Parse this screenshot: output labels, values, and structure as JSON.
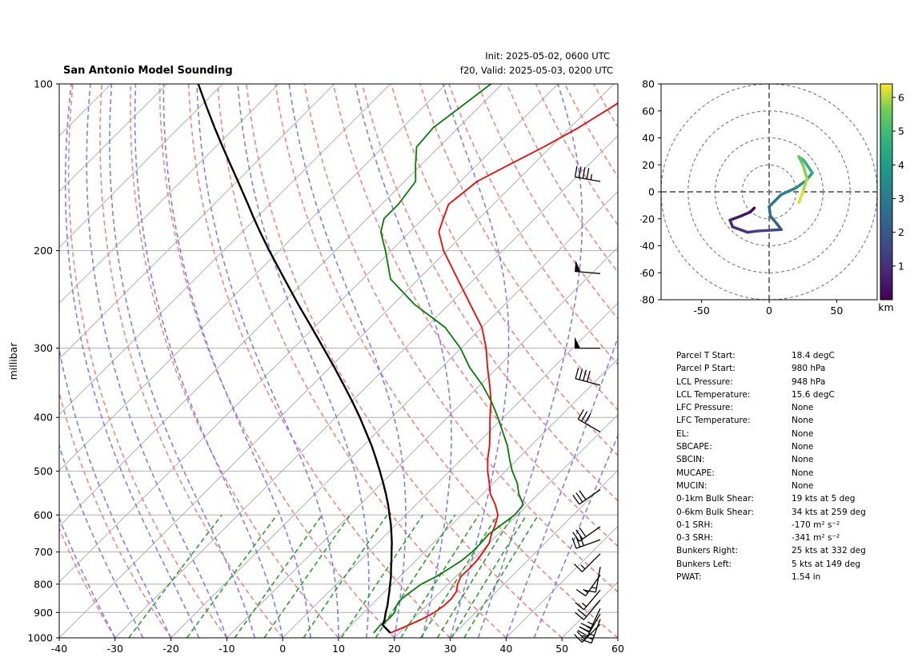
{
  "title_left": "San Antonio Model Sounding",
  "init_line": "Init: 2025-05-02, 0600 UTC",
  "valid_line": "f20, Valid: 2025-05-03, 0200 UTC",
  "colors": {
    "temperature": "#ff0000",
    "dewpoint": "#008000",
    "parcel": "#000000",
    "dry_adiabat": "#f08080",
    "moist_adiabat": "#6f6fff",
    "mixing_ratio": "#2ca02c",
    "isotherm": "#b0b0b0",
    "grid": "#b0b0b0"
  },
  "chart_data": [
    {
      "type": "line",
      "subtype": "skew-t log-p",
      "title": "San Antonio Model Sounding",
      "ylabel": "millibar",
      "xlabel": "",
      "xlim": [
        -40,
        60
      ],
      "ylim": [
        1000,
        100
      ],
      "y_scale": "log",
      "grid": true,
      "x_ticks": [
        -40,
        -30,
        -20,
        -10,
        0,
        10,
        20,
        30,
        40,
        50,
        60
      ],
      "y_ticks": [
        100,
        200,
        300,
        400,
        500,
        600,
        700,
        800,
        900,
        1000
      ],
      "series": [
        {
          "kind": "temperature",
          "p": [
            980,
            950,
            925,
            900,
            875,
            850,
            825,
            800,
            775,
            750,
            725,
            700,
            675,
            650,
            625,
            600,
            575,
            550,
            525,
            500,
            475,
            450,
            425,
            400,
            375,
            350,
            325,
            300,
            275,
            250,
            225,
            200,
            185,
            175,
            165,
            150,
            140,
            130,
            120,
            110,
            100
          ],
          "t": [
            18.4,
            20.2,
            21.6,
            22.6,
            23.1,
            23.2,
            22.8,
            21.7,
            20.9,
            21.0,
            20.9,
            20.5,
            20.0,
            18.8,
            17.8,
            16.5,
            14.2,
            11.4,
            9.2,
            6.8,
            4.6,
            2.6,
            0.2,
            -2.4,
            -5.0,
            -8.2,
            -11.8,
            -15.5,
            -20.0,
            -26.2,
            -33.0,
            -40.6,
            -44.8,
            -46.4,
            -48.0,
            -47.0,
            -44.3,
            -41.3,
            -38.5,
            -36.2,
            -34.0
          ]
        },
        {
          "kind": "dewpoint",
          "p": [
            980,
            950,
            925,
            900,
            875,
            850,
            825,
            800,
            775,
            750,
            725,
            700,
            675,
            650,
            625,
            600,
            575,
            550,
            525,
            500,
            475,
            450,
            425,
            400,
            375,
            350,
            325,
            300,
            275,
            250,
            225,
            200,
            185,
            175,
            165,
            150,
            140,
            130,
            120,
            110,
            100
          ],
          "t": [
            15.4,
            15.2,
            15.6,
            15.5,
            14.6,
            14.3,
            14.7,
            15.2,
            16.5,
            17.4,
            18.2,
            18.5,
            18.5,
            18.3,
            18.9,
            19.5,
            19.2,
            16.5,
            14.2,
            11.2,
            8.5,
            5.8,
            2.5,
            -1.0,
            -4.9,
            -9.5,
            -15.0,
            -20.1,
            -26.6,
            -36.2,
            -45.0,
            -51.0,
            -55.2,
            -57.0,
            -57.0,
            -58.0,
            -61.0,
            -64.0,
            -64.5,
            -63.3,
            -62.0
          ]
        },
        {
          "kind": "parcel",
          "p": [
            980,
            948,
            925,
            900,
            875,
            850,
            825,
            800,
            775,
            750,
            725,
            700,
            675,
            650,
            625,
            600,
            575,
            550,
            525,
            500,
            475,
            450,
            425,
            400,
            375,
            350,
            325,
            300,
            275,
            250,
            225,
            200,
            185,
            175,
            165,
            150,
            140,
            130,
            120,
            110,
            100
          ],
          "t": [
            18.4,
            15.6,
            14.9,
            13.9,
            13.0,
            11.9,
            10.8,
            9.6,
            8.4,
            7.0,
            5.6,
            4.1,
            2.6,
            0.9,
            -0.9,
            -2.9,
            -5.0,
            -7.3,
            -9.8,
            -12.5,
            -15.4,
            -18.5,
            -22.0,
            -25.7,
            -29.8,
            -34.3,
            -39.2,
            -44.6,
            -50.5,
            -57.0,
            -64.0,
            -71.8,
            -76.8,
            -80.3,
            -83.9,
            -89.8,
            -94.1,
            -98.7,
            -103.6,
            -108.8,
            -114.4
          ]
        }
      ],
      "wind_barbs": [
        {
          "p": 150,
          "speed_kt": 45,
          "dir_deg": 280
        },
        {
          "p": 220,
          "speed_kt": 50,
          "dir_deg": 275
        },
        {
          "p": 300,
          "speed_kt": 50,
          "dir_deg": 270
        },
        {
          "p": 350,
          "speed_kt": 40,
          "dir_deg": 285
        },
        {
          "p": 425,
          "speed_kt": 30,
          "dir_deg": 300
        },
        {
          "p": 540,
          "speed_kt": 30,
          "dir_deg": 235
        },
        {
          "p": 630,
          "speed_kt": 30,
          "dir_deg": 235
        },
        {
          "p": 665,
          "speed_kt": 30,
          "dir_deg": 250
        },
        {
          "p": 705,
          "speed_kt": 15,
          "dir_deg": 225
        },
        {
          "p": 745,
          "speed_kt": 15,
          "dir_deg": 190
        },
        {
          "p": 770,
          "speed_kt": 15,
          "dir_deg": 215
        },
        {
          "p": 820,
          "speed_kt": 15,
          "dir_deg": 220
        },
        {
          "p": 855,
          "speed_kt": 20,
          "dir_deg": 220
        },
        {
          "p": 885,
          "speed_kt": 25,
          "dir_deg": 205
        },
        {
          "p": 905,
          "speed_kt": 25,
          "dir_deg": 210
        },
        {
          "p": 925,
          "speed_kt": 25,
          "dir_deg": 200
        },
        {
          "p": 945,
          "speed_kt": 20,
          "dir_deg": 225
        }
      ]
    },
    {
      "type": "line",
      "subtype": "hodograph",
      "xlim": [
        -80,
        80
      ],
      "ylim": [
        -80,
        80
      ],
      "x_ticks": [
        -50,
        0,
        50
      ],
      "y_ticks": [
        -80,
        -60,
        -40,
        -20,
        0,
        20,
        40,
        60,
        80
      ],
      "rings": [
        20,
        40,
        60,
        80
      ],
      "colorbar_label": "km",
      "colorbar_ticks": [
        1,
        2,
        3,
        4,
        5,
        6
      ],
      "colorbar_range": [
        0,
        6.4
      ],
      "points": [
        {
          "u": -11,
          "v": -12,
          "z": 0.0
        },
        {
          "u": -14,
          "v": -15,
          "z": 0.2
        },
        {
          "u": -21,
          "v": -18,
          "z": 0.4
        },
        {
          "u": -29,
          "v": -21,
          "z": 0.6
        },
        {
          "u": -27,
          "v": -26,
          "z": 0.8
        },
        {
          "u": -16,
          "v": -30,
          "z": 1.0
        },
        {
          "u": -8,
          "v": -29,
          "z": 1.2
        },
        {
          "u": 9,
          "v": -28,
          "z": 1.6
        },
        {
          "u": 6,
          "v": -24,
          "z": 1.9
        },
        {
          "u": 1,
          "v": -18,
          "z": 2.2
        },
        {
          "u": 0,
          "v": -11,
          "z": 2.4
        },
        {
          "u": 9,
          "v": -2,
          "z": 2.7
        },
        {
          "u": 20,
          "v": 3,
          "z": 3.0
        },
        {
          "u": 27,
          "v": 8,
          "z": 3.4
        },
        {
          "u": 32,
          "v": 14,
          "z": 3.8
        },
        {
          "u": 26,
          "v": 23,
          "z": 4.2
        },
        {
          "u": 22,
          "v": 26,
          "z": 4.5
        },
        {
          "u": 25,
          "v": 20,
          "z": 5.0
        },
        {
          "u": 28,
          "v": 10,
          "z": 5.4
        },
        {
          "u": 25,
          "v": 0,
          "z": 5.8
        },
        {
          "u": 22,
          "v": -8,
          "z": 6.2
        }
      ]
    }
  ],
  "params": [
    {
      "label": "Parcel T Start:",
      "value": "18.4 degC"
    },
    {
      "label": "Parcel P Start:",
      "value": "980 hPa"
    },
    {
      "label": "LCL Pressure:",
      "value": "948 hPa"
    },
    {
      "label": "LCL Temperature:",
      "value": "15.6 degC"
    },
    {
      "label": "LFC Pressure:",
      "value": "None"
    },
    {
      "label": "LFC Temperature:",
      "value": "None"
    },
    {
      "label": "EL:",
      "value": "None"
    },
    {
      "label": "SBCAPE:",
      "value": "None"
    },
    {
      "label": "SBCIN:",
      "value": "None"
    },
    {
      "label": "MUCAPE:",
      "value": "None"
    },
    {
      "label": "MUCIN:",
      "value": "None"
    },
    {
      "label": "0-1km Bulk Shear:",
      "value": "19 kts at 5 deg"
    },
    {
      "label": "0-6km Bulk Shear:",
      "value": "34 kts at 259 deg"
    },
    {
      "label": "0-1 SRH:",
      "value": "-170 m² s⁻²"
    },
    {
      "label": "0-3 SRH:",
      "value": "-341 m² s⁻²"
    },
    {
      "label": "Bunkers Right:",
      "value": "25 kts at 332 deg"
    },
    {
      "label": "Bunkers Left:",
      "value": "5 kts at 149 deg"
    },
    {
      "label": "PWAT:",
      "value": "1.54 in"
    }
  ]
}
